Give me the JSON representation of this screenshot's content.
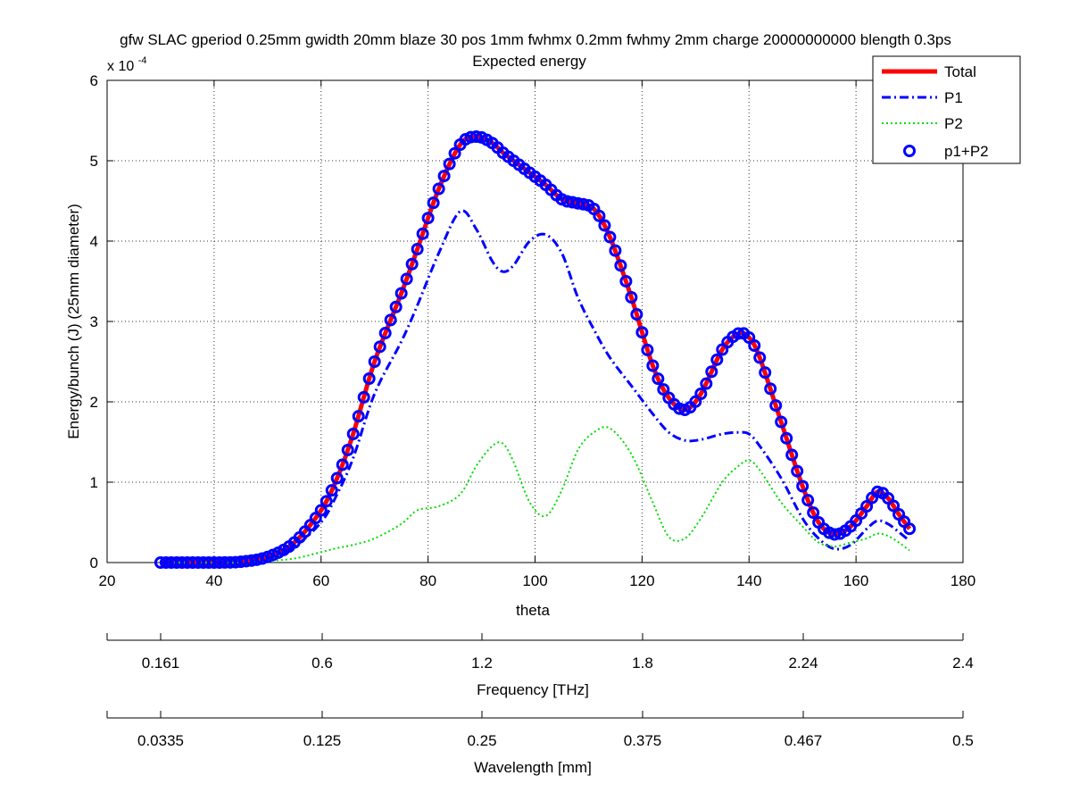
{
  "figure": {
    "title_line1": "gfw SLAC gperiod 0.25mm gwidth 20mm blaze 30 pos 1mm fwhmx 0.2mm fwhmy 2mm charge 20000000000 blength 0.3ps",
    "title_line2": "Expected energy"
  },
  "chart_data": {
    "type": "line",
    "title": "gfw SLAC gperiod 0.25mm gwidth 20mm blaze 30 pos 1mm fwhmx 0.2mm fwhmy 2mm charge 20000000000 blength 0.3ps",
    "subtitle": "Expected energy",
    "xlabel": "theta",
    "ylabel": "Energy/bunch (J) (25mm diameter)",
    "y_multiplier": "x 10",
    "y_multiplier_exponent": "-4",
    "xlim": [
      20,
      180
    ],
    "ylim": [
      0,
      6
    ],
    "xticks": [
      "20",
      "40",
      "60",
      "80",
      "100",
      "120",
      "140",
      "160",
      "180"
    ],
    "yticks": [
      "0",
      "1",
      "2",
      "3",
      "4",
      "5",
      "6"
    ],
    "grid": true,
    "legend_position": "top-right",
    "x": [
      30,
      35,
      40,
      45,
      50,
      55,
      60,
      63,
      66,
      70,
      75,
      78,
      82,
      86,
      89,
      92,
      94,
      96,
      99,
      102,
      105,
      108,
      111,
      114,
      118,
      122,
      125,
      128,
      131,
      135,
      138,
      140,
      142,
      146,
      150,
      153,
      156,
      159,
      162,
      164,
      166,
      168,
      170
    ],
    "series": [
      {
        "name": "Total",
        "style": "solid",
        "color": "#ff0000",
        "values": [
          0.0,
          0.0,
          0.0,
          0.01,
          0.07,
          0.25,
          0.65,
          1.05,
          1.6,
          2.5,
          3.35,
          3.9,
          4.65,
          5.2,
          5.3,
          5.22,
          5.1,
          5.0,
          4.85,
          4.7,
          4.52,
          4.47,
          4.4,
          4.05,
          3.3,
          2.45,
          2.05,
          1.9,
          2.1,
          2.65,
          2.85,
          2.8,
          2.55,
          1.75,
          0.95,
          0.5,
          0.35,
          0.45,
          0.7,
          0.88,
          0.8,
          0.6,
          0.42
        ]
      },
      {
        "name": "P1",
        "style": "dashdot",
        "color": "#0000ff",
        "values": [
          0.0,
          0.0,
          0.0,
          0.01,
          0.05,
          0.2,
          0.5,
          0.85,
          1.3,
          2.1,
          2.75,
          3.2,
          3.85,
          4.37,
          4.15,
          3.75,
          3.62,
          3.7,
          4.0,
          4.08,
          3.85,
          3.3,
          2.9,
          2.55,
          2.2,
          1.85,
          1.62,
          1.52,
          1.53,
          1.6,
          1.62,
          1.6,
          1.45,
          1.05,
          0.55,
          0.3,
          0.17,
          0.22,
          0.42,
          0.52,
          0.48,
          0.38,
          0.27
        ]
      },
      {
        "name": "P2",
        "style": "dotted",
        "color": "#00dd00",
        "values": [
          0.0,
          0.0,
          0.0,
          0.0,
          0.02,
          0.05,
          0.13,
          0.18,
          0.22,
          0.3,
          0.48,
          0.65,
          0.7,
          0.85,
          1.2,
          1.45,
          1.48,
          1.25,
          0.75,
          0.58,
          0.9,
          1.4,
          1.62,
          1.67,
          1.35,
          0.75,
          0.32,
          0.3,
          0.55,
          1.0,
          1.2,
          1.27,
          1.15,
          0.75,
          0.45,
          0.25,
          0.2,
          0.25,
          0.3,
          0.36,
          0.33,
          0.25,
          0.15
        ]
      },
      {
        "name": "p1+P2",
        "style": "circle-markers",
        "color": "#0000ff",
        "values": [
          0.0,
          0.0,
          0.0,
          0.01,
          0.07,
          0.25,
          0.65,
          1.05,
          1.6,
          2.5,
          3.35,
          3.9,
          4.65,
          5.2,
          5.3,
          5.22,
          5.1,
          5.0,
          4.85,
          4.7,
          4.52,
          4.47,
          4.4,
          4.05,
          3.3,
          2.45,
          2.05,
          1.9,
          2.1,
          2.65,
          2.85,
          2.8,
          2.55,
          1.75,
          0.95,
          0.5,
          0.35,
          0.45,
          0.7,
          0.88,
          0.8,
          0.6,
          0.42
        ]
      }
    ],
    "secondary_axes": [
      {
        "label": "Frequency [THz]",
        "ticks": [
          "0.161",
          "0.6",
          "1.2",
          "1.8",
          "2.24",
          "2.4"
        ]
      },
      {
        "label": "Wavelength [mm]",
        "ticks": [
          "0.0335",
          "0.125",
          "0.25",
          "0.375",
          "0.467",
          "0.5"
        ]
      }
    ]
  }
}
